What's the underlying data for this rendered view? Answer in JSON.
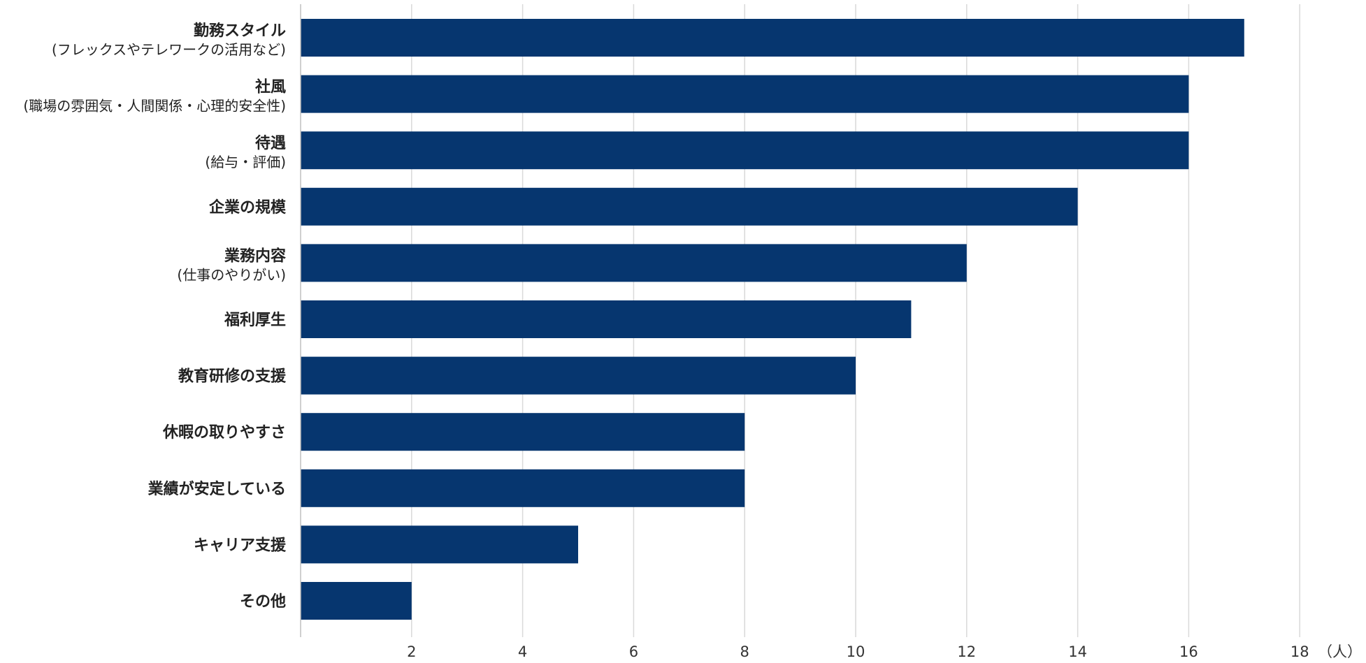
{
  "chart_data": {
    "type": "bar",
    "orientation": "horizontal",
    "categories": [
      {
        "label": "勤務スタイル",
        "sublabel": "(フレックスやテレワークの活用など)"
      },
      {
        "label": "社風",
        "sublabel": "(職場の雰囲気・人間関係・心理的安全性)"
      },
      {
        "label": "待遇",
        "sublabel": "(給与・評価)"
      },
      {
        "label": "企業の規模",
        "sublabel": ""
      },
      {
        "label": "業務内容",
        "sublabel": "(仕事のやりがい)"
      },
      {
        "label": "福利厚生",
        "sublabel": ""
      },
      {
        "label": "教育研修の支援",
        "sublabel": ""
      },
      {
        "label": "休暇の取りやすさ",
        "sublabel": ""
      },
      {
        "label": "業績が安定している",
        "sublabel": ""
      },
      {
        "label": "キャリア支援",
        "sublabel": ""
      },
      {
        "label": "その他",
        "sublabel": ""
      }
    ],
    "values": [
      17,
      16,
      16,
      14,
      12,
      11,
      10,
      8,
      8,
      5,
      2
    ],
    "xlim": [
      0,
      18
    ],
    "xticks": [
      "2",
      "4",
      "6",
      "8",
      "10",
      "12",
      "14",
      "16",
      "18"
    ],
    "xunit": "（人）",
    "title": "",
    "xlabel": "",
    "ylabel": "",
    "grid": "vertical",
    "legend": "none",
    "bar_color": "#06366f"
  }
}
